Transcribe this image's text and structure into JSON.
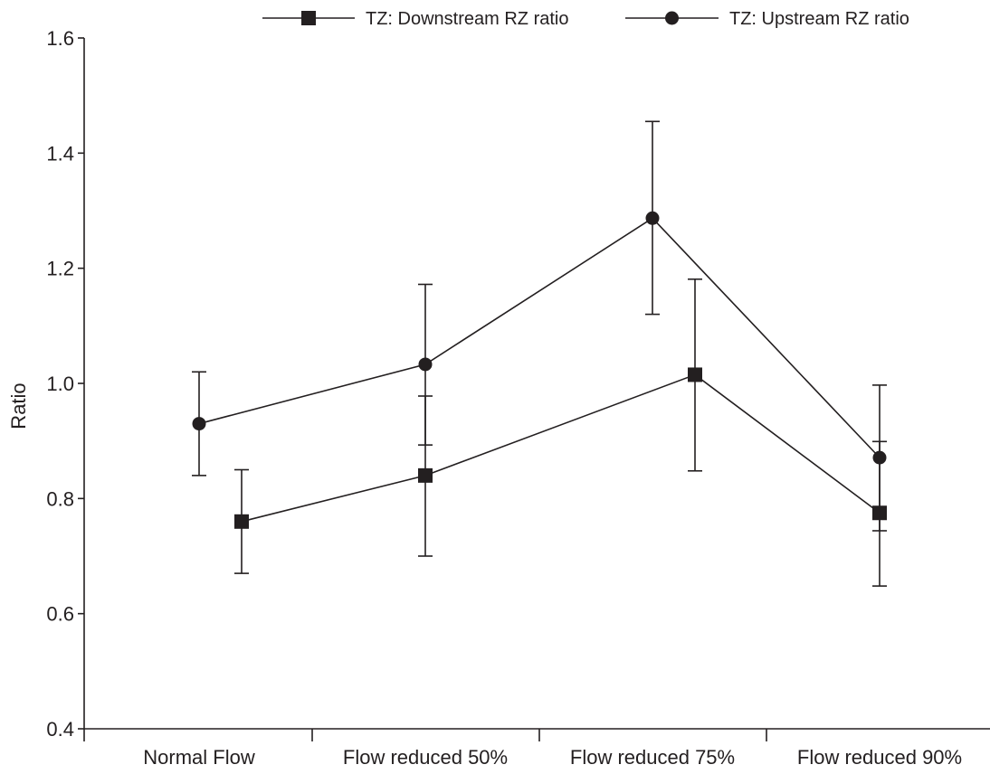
{
  "chart_data": {
    "type": "line",
    "categories": [
      "Normal Flow",
      "Flow reduced 50%",
      "Flow reduced 75%",
      "Flow reduced 90%"
    ],
    "ylabel": "Ratio",
    "xlabel": "",
    "ylim": [
      0.4,
      1.6
    ],
    "yticks": [
      0.4,
      0.6,
      0.8,
      1.0,
      1.2,
      1.4,
      1.6
    ],
    "ytick_labels": [
      "0.4",
      "0.6",
      "0.8",
      "1.0",
      "1.2",
      "1.4",
      "1.6"
    ],
    "grid": false,
    "legend_position": "top",
    "series": [
      {
        "name": "TZ: Downstream RZ ratio",
        "marker": "square",
        "values": [
          0.76,
          0.84,
          1.015,
          0.775
        ],
        "error_low": [
          0.67,
          0.7,
          0.848,
          0.648
        ],
        "error_high": [
          0.85,
          0.978,
          1.181,
          0.899
        ]
      },
      {
        "name": "TZ: Upstream RZ ratio",
        "marker": "circle",
        "values": [
          0.93,
          1.033,
          1.287,
          0.871
        ],
        "error_low": [
          0.84,
          0.893,
          1.12,
          0.744
        ],
        "error_high": [
          1.02,
          1.172,
          1.455,
          0.997
        ]
      }
    ]
  },
  "colors": {
    "ink": "#231f20",
    "background": "#ffffff"
  }
}
